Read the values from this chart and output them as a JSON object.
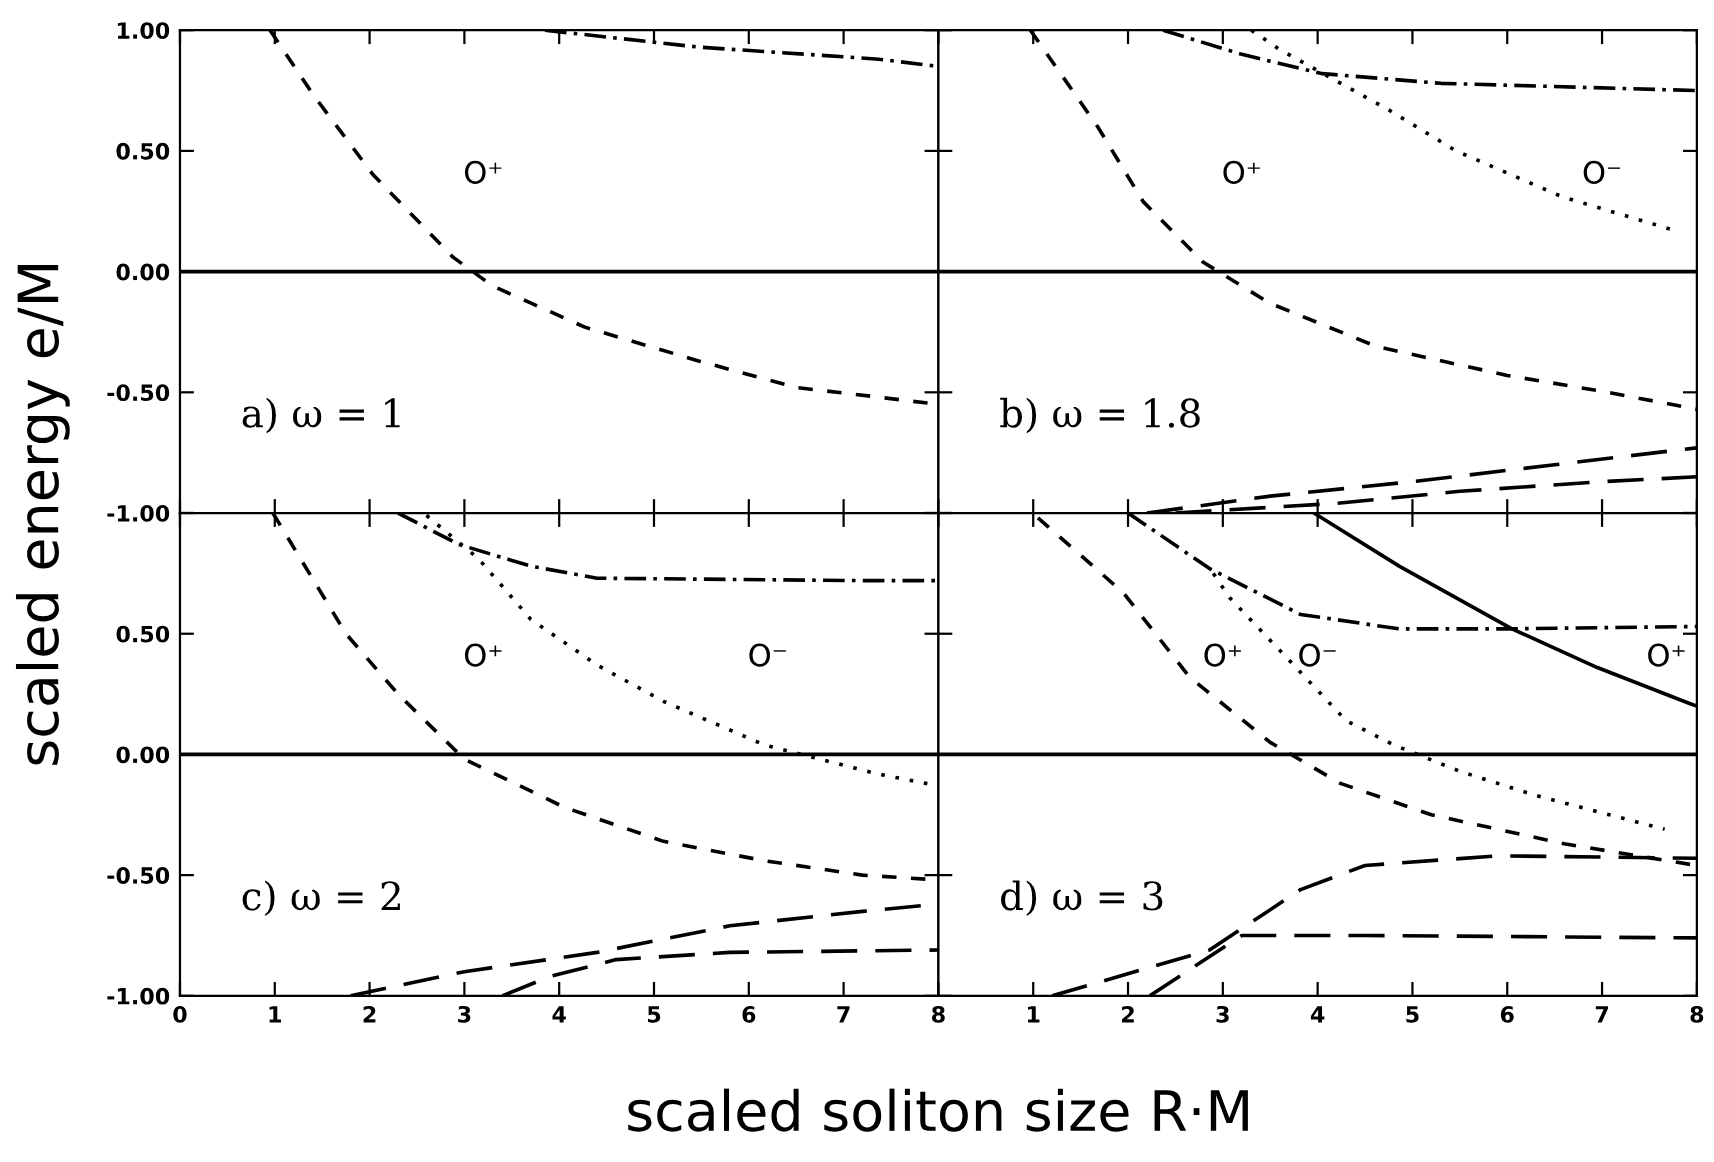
{
  "chart_data": [
    {
      "type": "line",
      "ylabel": "scaled energy e/M",
      "xlim": [
        0,
        8
      ],
      "ylim": [
        -1,
        1
      ],
      "xticks": [
        0,
        1,
        2,
        3,
        4,
        5,
        6,
        7,
        8
      ],
      "yticks": [
        {
          "value": 1,
          "label": "1.00"
        },
        {
          "value": 0.5,
          "label": "0.50"
        },
        {
          "value": 0,
          "label": "0.00"
        },
        {
          "value": -0.5,
          "label": "-0.50"
        },
        {
          "value": -1,
          "label": "-1.00"
        }
      ],
      "tick_labels": "y",
      "grid": false,
      "legend": false,
      "ref_lines": [
        {
          "axis": "y",
          "value": 0,
          "color": "#000000",
          "line_style": "solid"
        }
      ],
      "annotations": [
        "a) ω = 1",
        "O⁺"
      ],
      "series": [
        {
          "color": "#000000",
          "line_style": "dashed",
          "x": [
            0.95,
            1.41,
            2.04,
            2.88,
            3.3,
            4.27,
            5.47,
            6.5,
            7.37,
            8
          ],
          "values": [
            1.0,
            0.73,
            0.4,
            0.06,
            -0.06,
            -0.23,
            -0.37,
            -0.48,
            -0.52,
            -0.55
          ]
        },
        {
          "color": "#000000",
          "line_style": "dashdot",
          "x": [
            3.85,
            5.47,
            7.37,
            8
          ],
          "values": [
            1.0,
            0.93,
            0.88,
            0.85
          ]
        }
      ]
    },
    {
      "type": "line",
      "xlim": [
        0,
        8
      ],
      "ylim": [
        -1,
        1
      ],
      "xticks": [
        0,
        1,
        2,
        3,
        4,
        5,
        6,
        7,
        8
      ],
      "yticks": [
        1,
        0.5,
        0,
        -0.5,
        -1
      ],
      "tick_labels": false,
      "grid": false,
      "legend": false,
      "ref_lines": [
        {
          "axis": "y",
          "value": 0,
          "color": "#000000",
          "line_style": "solid"
        }
      ],
      "annotations": [
        "b) ω = 1.8",
        "O⁺",
        "O⁻"
      ],
      "series": [
        {
          "color": "#000000",
          "line_style": "dashed",
          "x": [
            0.97,
            1.68,
            2.16,
            2.79,
            3.49,
            4.62,
            6.0,
            7.06,
            8
          ],
          "values": [
            1.0,
            0.6,
            0.29,
            0.04,
            -0.13,
            -0.31,
            -0.43,
            -0.5,
            -0.57
          ]
        },
        {
          "color": "#000000",
          "line_style": "dashdot",
          "x": [
            2.37,
            3.2,
            4.05,
            5.3,
            8
          ],
          "values": [
            1.0,
            0.9,
            0.82,
            0.78,
            0.75
          ]
        },
        {
          "color": "#000000",
          "line_style": "dotted",
          "x": [
            3.3,
            3.6,
            4.75,
            5.46,
            6.58,
            7.77
          ],
          "values": [
            1.0,
            0.92,
            0.67,
            0.5,
            0.31,
            0.17
          ]
        },
        {
          "color": "#000000",
          "line_style": "longdash",
          "x": [
            2.2,
            3.5,
            5.0,
            6.5,
            8
          ],
          "values": [
            -1.0,
            -0.93,
            -0.87,
            -0.8,
            -0.73
          ]
        },
        {
          "color": "#000000",
          "line_style": "longdash",
          "x": [
            2.5,
            4.2,
            5.5,
            7.0,
            8
          ],
          "values": [
            -1.0,
            -0.96,
            -0.91,
            -0.87,
            -0.85
          ]
        }
      ]
    },
    {
      "type": "line",
      "xlabel": "scaled soliton size R·M",
      "xlim": [
        0,
        8
      ],
      "ylim": [
        -1,
        1
      ],
      "xticks": [
        0,
        1,
        2,
        3,
        4,
        5,
        6,
        7,
        8
      ],
      "yticks": [
        {
          "value": 1,
          "label": null
        },
        {
          "value": 0.5,
          "label": "0.50"
        },
        {
          "value": 0,
          "label": "0.00"
        },
        {
          "value": -0.5,
          "label": "-0.50"
        },
        {
          "value": -1,
          "label": "-1.00"
        }
      ],
      "grid": false,
      "legend": false,
      "ref_lines": [
        {
          "axis": "y",
          "value": 0,
          "color": "#000000",
          "line_style": "solid"
        }
      ],
      "annotations": [
        "c) ω = 2",
        "O⁺",
        "O⁻"
      ],
      "series": [
        {
          "color": "#000000",
          "line_style": "dashed",
          "x": [
            0.98,
            1.75,
            2.3,
            3.0,
            4.06,
            5.1,
            6.16,
            7.2,
            8
          ],
          "values": [
            1.0,
            0.5,
            0.25,
            -0.02,
            -0.22,
            -0.36,
            -0.44,
            -0.5,
            -0.52
          ]
        },
        {
          "color": "#000000",
          "line_style": "dashdot",
          "x": [
            2.3,
            2.94,
            3.7,
            4.4,
            7.2,
            8
          ],
          "values": [
            1.0,
            0.87,
            0.78,
            0.73,
            0.72,
            0.72
          ]
        },
        {
          "color": "#000000",
          "line_style": "dotted",
          "x": [
            2.6,
            3.15,
            3.7,
            4.4,
            5.1,
            6.16,
            7.35,
            8
          ],
          "values": [
            0.99,
            0.81,
            0.56,
            0.37,
            0.22,
            0.04,
            -0.08,
            -0.13
          ]
        },
        {
          "color": "#000000",
          "line_style": "longdash",
          "x": [
            1.8,
            3.0,
            4.4,
            5.8,
            7.2,
            8
          ],
          "values": [
            -1.0,
            -0.9,
            -0.82,
            -0.71,
            -0.65,
            -0.62
          ]
        },
        {
          "color": "#000000",
          "line_style": "longdash",
          "x": [
            3.4,
            3.9,
            4.6,
            5.8,
            8
          ],
          "values": [
            -1.0,
            -0.92,
            -0.85,
            -0.82,
            -0.81
          ]
        }
      ]
    },
    {
      "type": "line",
      "xlim": [
        0,
        8
      ],
      "ylim": [
        -1,
        1
      ],
      "xticks": [
        {
          "value": 0,
          "label": null
        },
        1,
        2,
        3,
        4,
        5,
        6,
        7,
        8
      ],
      "yticks": [
        1,
        0.5,
        0,
        -0.5,
        -1
      ],
      "tick_labels": "x",
      "grid": false,
      "legend": false,
      "ref_lines": [
        {
          "axis": "y",
          "value": 0,
          "color": "#000000",
          "line_style": "solid"
        }
      ],
      "annotations": [
        "d) ω = 3",
        "O⁺",
        "O⁻",
        "O⁺"
      ],
      "series": [
        {
          "color": "#000000",
          "line_style": "dashed",
          "x": [
            1.05,
            1.95,
            2.65,
            3.5,
            4.24,
            5.2,
            6.6,
            8
          ],
          "values": [
            0.98,
            0.67,
            0.32,
            0.05,
            -0.12,
            -0.25,
            -0.37,
            -0.46
          ]
        },
        {
          "color": "#000000",
          "line_style": "dashdot",
          "x": [
            2.0,
            2.86,
            3.82,
            4.86,
            6.0,
            8
          ],
          "values": [
            1.0,
            0.77,
            0.58,
            0.52,
            0.52,
            0.53
          ]
        },
        {
          "color": "#000000",
          "line_style": "dotted",
          "x": [
            2.9,
            3.07,
            3.7,
            4.3,
            4.8,
            5.5,
            6.3,
            7.66
          ],
          "values": [
            0.75,
            0.65,
            0.39,
            0.14,
            0.04,
            -0.07,
            -0.17,
            -0.31
          ]
        },
        {
          "color": "#000000",
          "line_style": "solid",
          "x": [
            3.96,
            4.86,
            6.05,
            6.95,
            7.93,
            8
          ],
          "values": [
            1.0,
            0.78,
            0.52,
            0.36,
            0.21,
            0.2
          ]
        },
        {
          "color": "#000000",
          "line_style": "longdash",
          "x": [
            1.2,
            2.86,
            3.82,
            4.5,
            5.9,
            8
          ],
          "values": [
            -1.0,
            -0.81,
            -0.56,
            -0.46,
            -0.42,
            -0.43
          ]
        },
        {
          "color": "#000000",
          "line_style": "longdash",
          "x": [
            2.23,
            3.2,
            4.5,
            8
          ],
          "values": [
            -1.0,
            -0.75,
            -0.75,
            -0.76
          ]
        }
      ]
    }
  ]
}
